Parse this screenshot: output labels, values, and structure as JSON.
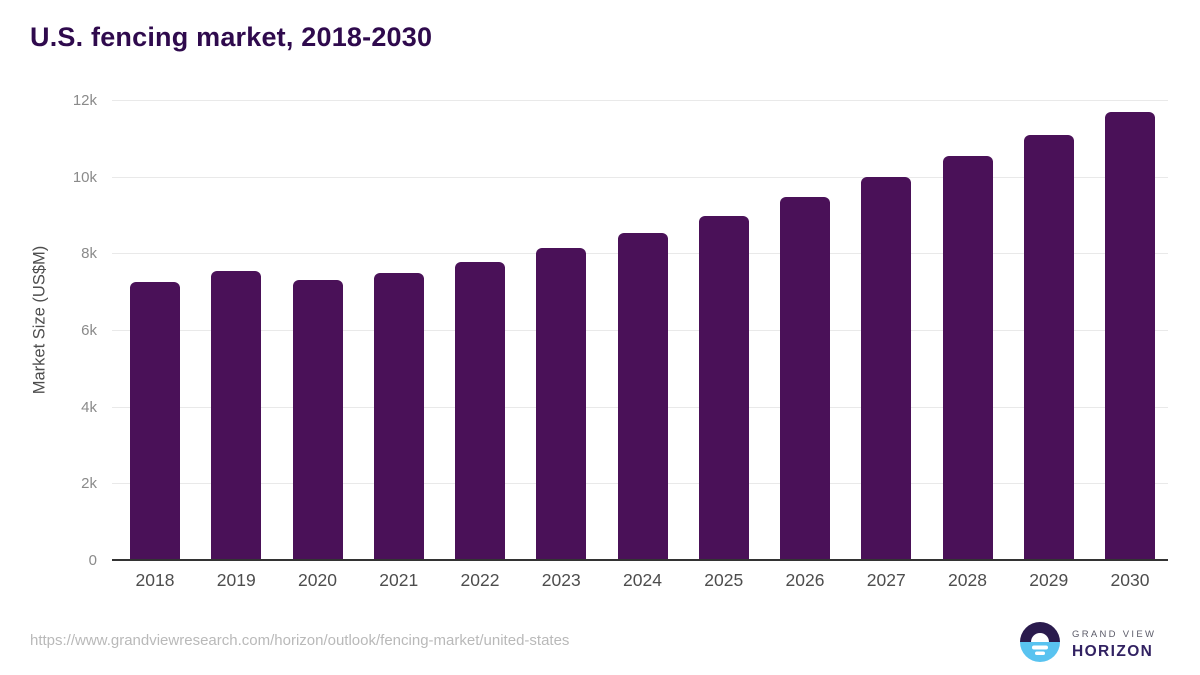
{
  "chart_data": {
    "type": "bar",
    "title": "U.S. fencing market, 2018-2030",
    "ylabel": "Market Size (US$M)",
    "xlabel": "",
    "categories": [
      "2018",
      "2019",
      "2020",
      "2021",
      "2022",
      "2023",
      "2024",
      "2025",
      "2026",
      "2027",
      "2028",
      "2029",
      "2030"
    ],
    "values": [
      7250,
      7550,
      7300,
      7480,
      7780,
      8140,
      8540,
      8970,
      9470,
      9980,
      10550,
      11100,
      11700
    ],
    "ylim": [
      0,
      12000
    ],
    "ytick_values": [
      0,
      2000,
      4000,
      6000,
      8000,
      10000,
      12000
    ],
    "ytick_labels": [
      "0",
      "2k",
      "4k",
      "6k",
      "8k",
      "10k",
      "12k"
    ],
    "grid": true,
    "legend": false,
    "bar_color": "#4a1158"
  },
  "footer": {
    "url": "https://www.grandviewresearch.com/horizon/outlook/fencing-market/united-states",
    "logo": {
      "line1": "GRAND VIEW",
      "line2": "HORIZON"
    }
  },
  "colors": {
    "title": "#2f0a4d",
    "bar": "#4a1158",
    "gridline": "#e9e9e9",
    "axis_line": "#333333",
    "ytick_label": "#8a8a8a",
    "xtick_label": "#4d4d4d",
    "url": "#b9b9b9",
    "logo_dark": "#2a1b4d",
    "logo_blue": "#59c3f0",
    "logo_grandview": "#5b5b68",
    "logo_horizon": "#322262"
  }
}
